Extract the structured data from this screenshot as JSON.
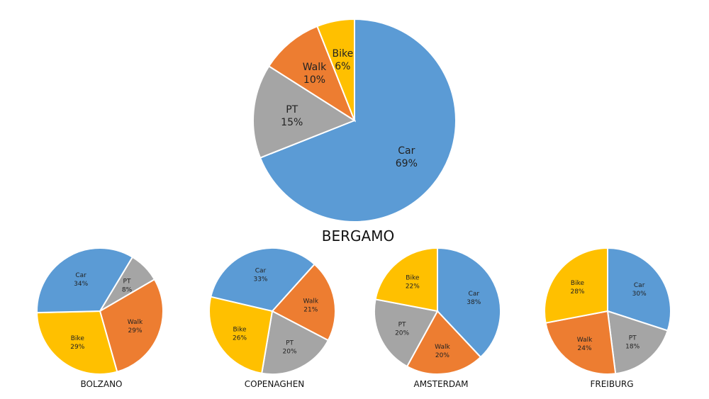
{
  "colors": {
    "Car": "#5b9bd5",
    "PT": "#a5a5a5",
    "Walk": "#ed7d31",
    "Bike": "#ffc000"
  },
  "chart_data": [
    {
      "type": "pie",
      "title": "BERGAMO",
      "slices": [
        {
          "label": "Car",
          "value": 69,
          "text": "69%"
        },
        {
          "label": "PT",
          "value": 15,
          "text": "15%"
        },
        {
          "label": "Walk",
          "value": 10,
          "text": "10%"
        },
        {
          "label": "Bike",
          "value": 6,
          "text": "6%"
        }
      ]
    },
    {
      "type": "pie",
      "title": "BOLZANO",
      "slices": [
        {
          "label": "PT",
          "value": 8,
          "text": "8%"
        },
        {
          "label": "Walk",
          "value": 29,
          "text": "29%"
        },
        {
          "label": "Bike",
          "value": 29,
          "text": "29%"
        },
        {
          "label": "Car",
          "value": 34,
          "text": "34%"
        }
      ]
    },
    {
      "type": "pie",
      "title": "COPENAGHEN",
      "slices": [
        {
          "label": "Walk",
          "value": 21,
          "text": "21%"
        },
        {
          "label": "PT",
          "value": 20,
          "text": "20%"
        },
        {
          "label": "Bike",
          "value": 26,
          "text": "26%"
        },
        {
          "label": "Car",
          "value": 33,
          "text": "33%"
        }
      ]
    },
    {
      "type": "pie",
      "title": "AMSTERDAM",
      "slices": [
        {
          "label": "Car",
          "value": 38,
          "text": "38%"
        },
        {
          "label": "Walk",
          "value": 20,
          "text": "20%"
        },
        {
          "label": "PT",
          "value": 20,
          "text": "20%"
        },
        {
          "label": "Bike",
          "value": 22,
          "text": "22%"
        }
      ]
    },
    {
      "type": "pie",
      "title": "FREIBURG",
      "slices": [
        {
          "label": "Car",
          "value": 30,
          "text": "30%"
        },
        {
          "label": "PT",
          "value": 18,
          "text": "18%"
        },
        {
          "label": "Walk",
          "value": 24,
          "text": "24%"
        },
        {
          "label": "Bike",
          "value": 28,
          "text": "28%"
        }
      ]
    }
  ]
}
